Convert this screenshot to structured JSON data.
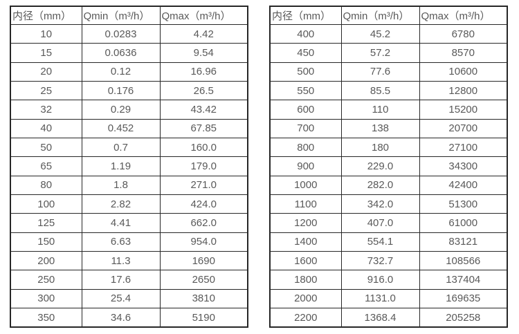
{
  "page": {
    "background": "#ffffff"
  },
  "colors": {
    "text": "#595959",
    "border": "#262626"
  },
  "tables": [
    {
      "name": "small-diameter-flow-table",
      "headers": [
        "内径（mm）",
        "Qmin（m³/h）",
        "Qmax（m³/h）"
      ],
      "rows": [
        [
          "10",
          "0.0283",
          "4.42"
        ],
        [
          "15",
          "0.0636",
          "9.54"
        ],
        [
          "20",
          "0.12",
          "16.96"
        ],
        [
          "25",
          "0.176",
          "26.5"
        ],
        [
          "32",
          "0.29",
          "43.42"
        ],
        [
          "40",
          "0.452",
          "67.85"
        ],
        [
          "50",
          "0.7",
          "160.0"
        ],
        [
          "65",
          "1.19",
          "179.0"
        ],
        [
          "80",
          "1.8",
          "271.0"
        ],
        [
          "100",
          "2.82",
          "424.0"
        ],
        [
          "125",
          "4.41",
          "662.0"
        ],
        [
          "150",
          "6.63",
          "954.0"
        ],
        [
          "200",
          "11.3",
          "1690"
        ],
        [
          "250",
          "17.6",
          "2650"
        ],
        [
          "300",
          "25.4",
          "3810"
        ],
        [
          "350",
          "34.6",
          "5190"
        ]
      ]
    },
    {
      "name": "large-diameter-flow-table",
      "headers": [
        "内径（mm）",
        "Qmin（m³/h）",
        "Qmax（m³/h）"
      ],
      "rows": [
        [
          "400",
          "45.2",
          "6780"
        ],
        [
          "450",
          "57.2",
          "8570"
        ],
        [
          "500",
          "77.6",
          "10600"
        ],
        [
          "550",
          "85.5",
          "12800"
        ],
        [
          "600",
          "110",
          "15200"
        ],
        [
          "700",
          "138",
          "20700"
        ],
        [
          "800",
          "180",
          "27100"
        ],
        [
          "900",
          "229.0",
          "34300"
        ],
        [
          "1000",
          "282.0",
          "42400"
        ],
        [
          "1100",
          "342.0",
          "51300"
        ],
        [
          "1200",
          "407.0",
          "61000"
        ],
        [
          "1400",
          "554.1",
          "83121"
        ],
        [
          "1600",
          "732.7",
          "108566"
        ],
        [
          "1800",
          "916.0",
          "137404"
        ],
        [
          "2000",
          "1131.0",
          "169635"
        ],
        [
          "2200",
          "1368.4",
          "205258"
        ]
      ]
    }
  ]
}
